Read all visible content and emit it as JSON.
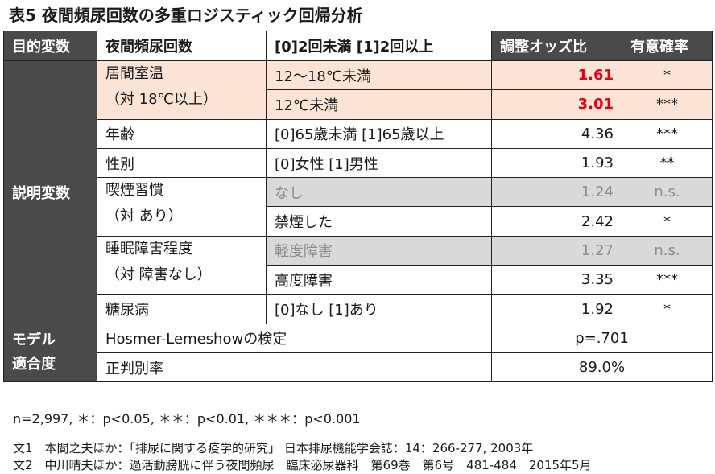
{
  "title": "表5 夜間頻尿回数の多重ロジスティック回帰分析",
  "header": {
    "col1": "目的変数",
    "col2": "夜間頻尿回数",
    "col3": "[0]2回未満 [1]2回以上",
    "col4": "調整オッズ比",
    "col5": "有意確率"
  },
  "group_explanatory": "説明変数",
  "group_model": "モデル\n適合度",
  "variables": {
    "room_temp": "居間室温\n（対 18℃以上）",
    "age": "年齢",
    "sex": "性別",
    "smoking": "喫煙習慣\n（対 あり）",
    "sleep": "睡眠障害程度\n（対 障害なし）",
    "diabetes": "糖尿病"
  },
  "rows": [
    {
      "category": "12～18℃未満",
      "or": "1.61",
      "sig": "*"
    },
    {
      "category": "12℃未満",
      "or": "3.01",
      "sig": "***"
    },
    {
      "category": "[0]65歳未満 [1]65歳以上",
      "or": "4.36",
      "sig": "***"
    },
    {
      "category": "[0]女性 [1]男性",
      "or": "1.93",
      "sig": "**"
    },
    {
      "category": "なし",
      "or": "1.24",
      "sig": "n.s."
    },
    {
      "category": "禁煙した",
      "or": "2.42",
      "sig": "*"
    },
    {
      "category": "軽度障害",
      "or": "1.27",
      "sig": "n.s."
    },
    {
      "category": "高度障害",
      "or": "3.35",
      "sig": "***"
    },
    {
      "category": "[0]なし [1]あり",
      "or": "1.92",
      "sig": "*"
    }
  ],
  "model_fit": {
    "hosmer_label": "Hosmer-Lemeshowの検定",
    "hosmer_value": "p=.701",
    "accuracy_label": "正判別率",
    "accuracy_value": "89.0%"
  },
  "notes": {
    "significance": "n=2,997, ＊：p<0.05, ＊＊：p<0.01, ＊＊＊：p<0.001",
    "ref1": "文1　本間之夫ほか：「排尿に関する疫学的研究」 日本排尿機能学会誌：14：266-277, 2003年",
    "ref2": "文2　中川晴夫ほか：過活動膀胱に伴う夜間頻尿　臨床泌尿器科　第69巻　第6号　481-484　2015年5月"
  },
  "colors": {
    "header_bg": "#4a4a4a",
    "highlight_peach": "#fbe3d6",
    "nonsig_gray": "#d9d9d9",
    "significant_red": "#e60012"
  }
}
